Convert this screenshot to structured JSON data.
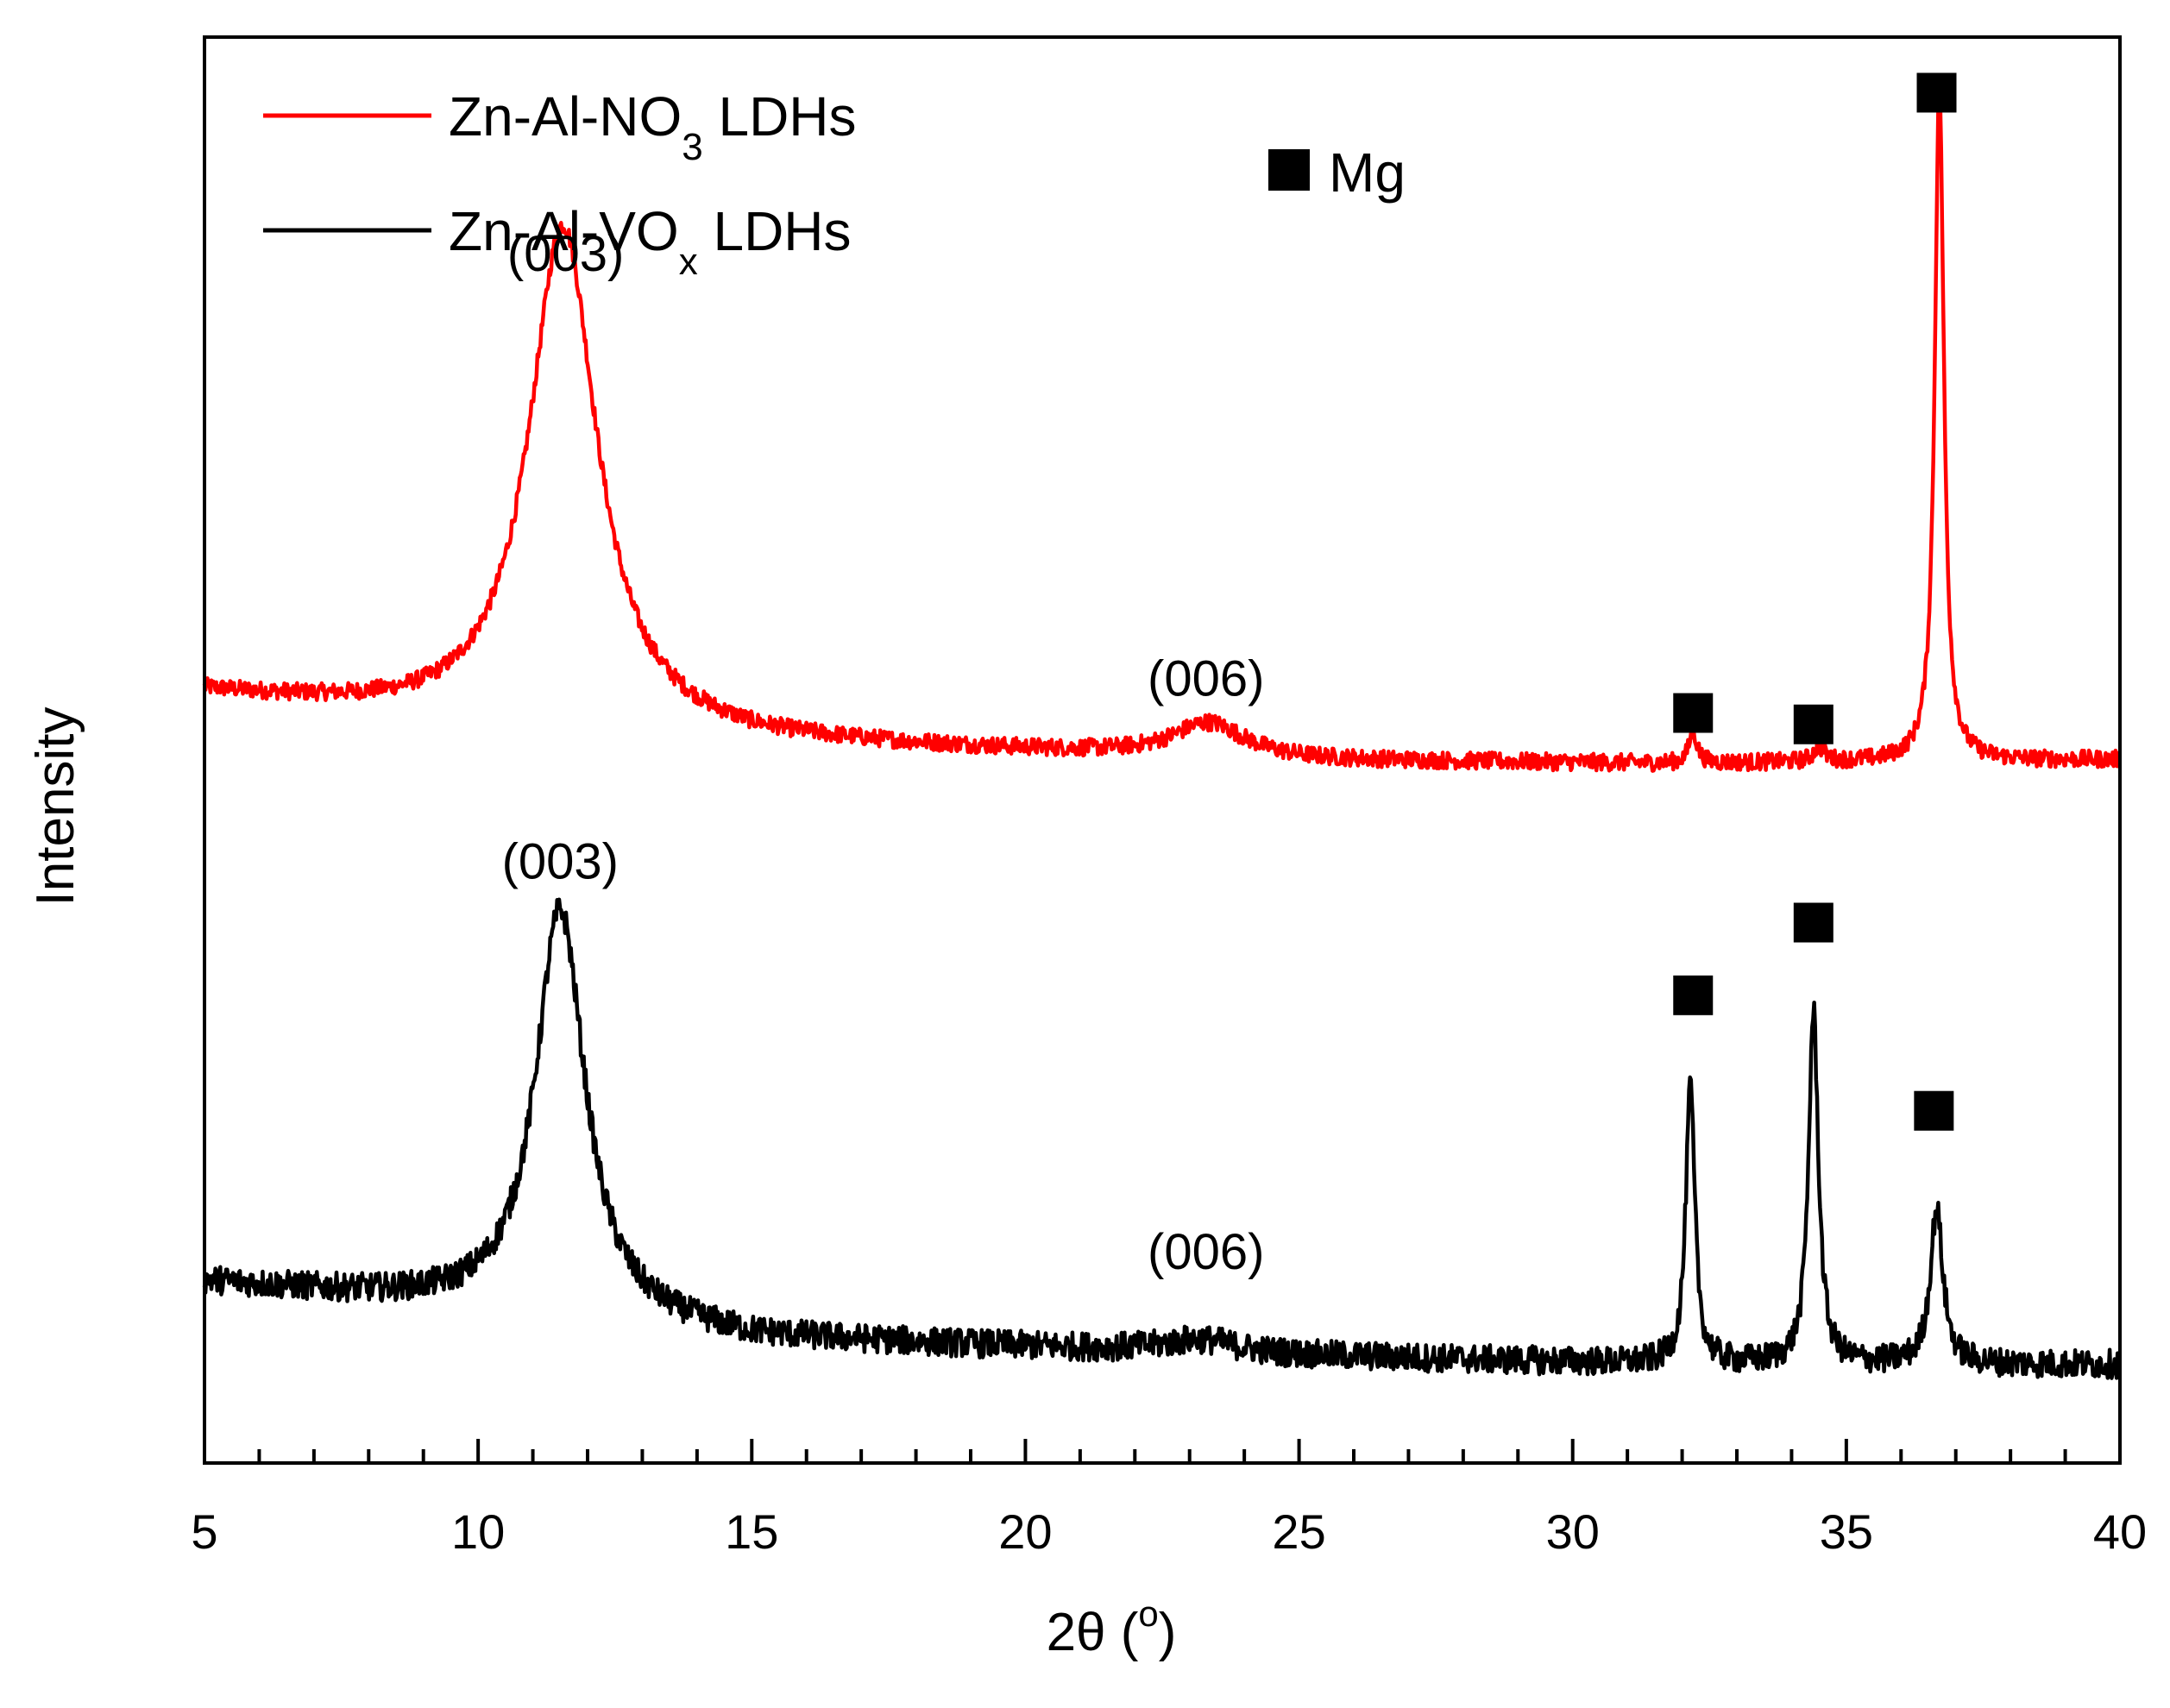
{
  "chart_data": {
    "type": "line",
    "title": "",
    "xlabel": "2θ (°)",
    "xlabel_parts": {
      "main": "2θ (",
      "sup": "o",
      "close": ")"
    },
    "ylabel": "Intensity",
    "xlim": [
      5,
      40
    ],
    "ylim": [
      0,
      100
    ],
    "x_ticks": [
      5,
      10,
      15,
      20,
      25,
      30,
      35,
      40
    ],
    "x_minor_step": 1,
    "y_ticks_visible": false,
    "grid": false,
    "series": [
      {
        "name": "Zn-Al-NO3 LDHs",
        "legend_parts": {
          "main": "Zn-Al-NO",
          "sub": "3",
          "tail": " LDHs"
        },
        "color": "#ff0000",
        "baseline": [
          [
            5,
            54
          ],
          [
            9,
            52.3
          ],
          [
            15,
            50.5
          ],
          [
            25,
            49.2
          ],
          [
            32,
            49
          ],
          [
            40,
            49.3
          ]
        ],
        "noise": 0.6,
        "peaks": [
          {
            "x": 11.55,
            "height": 35.3,
            "width": 0.75,
            "label": "(003)"
          },
          {
            "x": 23.35,
            "height": 2.4,
            "width": 0.8,
            "label": "(006)"
          },
          {
            "x": 32.2,
            "height": 2.2,
            "width": 0.09,
            "marker": "Mg"
          },
          {
            "x": 34.5,
            "height": 1.0,
            "width": 0.12,
            "marker": "Mg"
          },
          {
            "x": 36.7,
            "height": 47.6,
            "width": 0.1,
            "marker": "Mg"
          }
        ]
      },
      {
        "name": "Zn-Al-VOx LDHs",
        "legend_parts": {
          "main": "Zn-Al-VO",
          "sub": "x",
          "tail": " LDHs"
        },
        "color": "#000000",
        "baseline": [
          [
            5,
            12.7
          ],
          [
            9,
            11.3
          ],
          [
            15,
            8.7
          ],
          [
            25,
            7.5
          ],
          [
            32,
            6.9
          ],
          [
            40,
            6.9
          ]
        ],
        "noise": 1.0,
        "peaks": [
          {
            "x": 11.5,
            "height": 28.6,
            "width": 0.55,
            "label": "(003)"
          },
          {
            "x": 23.2,
            "height": 0.9,
            "width": 0.8,
            "label": "(006)"
          },
          {
            "x": 32.15,
            "height": 19.5,
            "width": 0.1,
            "marker": "Mg"
          },
          {
            "x": 34.4,
            "height": 24.7,
            "width": 0.11,
            "marker": "Mg"
          },
          {
            "x": 36.65,
            "height": 10.9,
            "width": 0.14,
            "marker": "Mg"
          }
        ]
      }
    ],
    "annotations": [
      {
        "text": "(003)",
        "x": 11.6,
        "y": 83.6
      },
      {
        "text": "(006)",
        "x": 23.3,
        "y": 53.8
      },
      {
        "text": "(003)",
        "x": 11.5,
        "y": 41.0
      },
      {
        "text": "(006)",
        "x": 23.3,
        "y": 13.6
      }
    ],
    "markers": [
      {
        "x": 36.65,
        "y": 96.1
      },
      {
        "x": 32.2,
        "y": 52.6
      },
      {
        "x": 34.4,
        "y": 51.8
      },
      {
        "x": 32.2,
        "y": 32.8
      },
      {
        "x": 34.4,
        "y": 37.9
      },
      {
        "x": 36.6,
        "y": 24.7
      }
    ],
    "marker_legend": {
      "symbol": "■",
      "label": "Mg"
    },
    "legend_position": "top-left"
  }
}
